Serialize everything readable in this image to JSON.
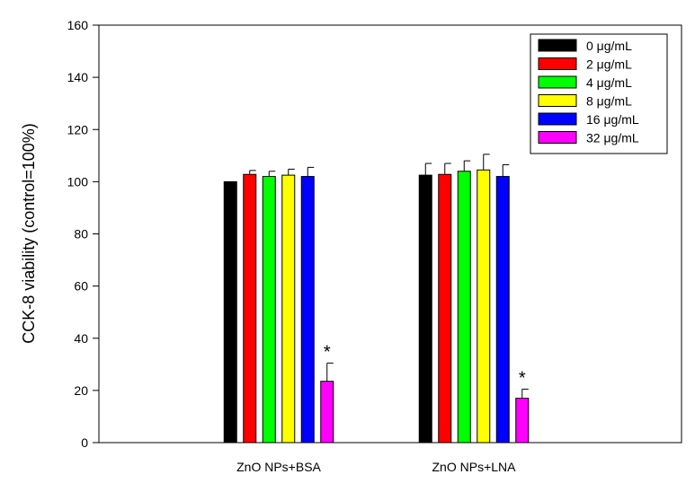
{
  "chart_data": {
    "type": "bar",
    "ylabel": "CCK-8 viability (control=100%)",
    "xlabel": "",
    "ylim": [
      0,
      160
    ],
    "yticks": [
      0,
      20,
      40,
      60,
      80,
      100,
      120,
      140,
      160
    ],
    "categories": [
      "ZnO NPs+BSA",
      "ZnO NPs+LNA"
    ],
    "legend_position": "top-right",
    "series": [
      {
        "name": "0 μg/mL",
        "color": "#000000",
        "values": [
          100,
          102.5
        ],
        "errors": [
          0,
          4.5
        ]
      },
      {
        "name": "2 μg/mL",
        "color": "#ff0000",
        "values": [
          102.8,
          102.8
        ],
        "errors": [
          1.5,
          4.2
        ]
      },
      {
        "name": "4 μg/mL",
        "color": "#00ff00",
        "values": [
          102,
          104
        ],
        "errors": [
          2,
          4
        ]
      },
      {
        "name": "8 μg/mL",
        "color": "#ffff00",
        "values": [
          102.5,
          104.5
        ],
        "errors": [
          2.3,
          6
        ]
      },
      {
        "name": "16 μg/mL",
        "color": "#0000ff",
        "values": [
          102,
          102
        ],
        "errors": [
          3.5,
          4.5
        ]
      },
      {
        "name": "32 μg/mL",
        "color": "#ff00ff",
        "values": [
          23.5,
          17
        ],
        "errors": [
          7,
          3.5
        ]
      }
    ],
    "annotations": [
      {
        "text": "*",
        "category": 0,
        "series": 5
      },
      {
        "text": "*",
        "category": 1,
        "series": 5
      }
    ]
  }
}
